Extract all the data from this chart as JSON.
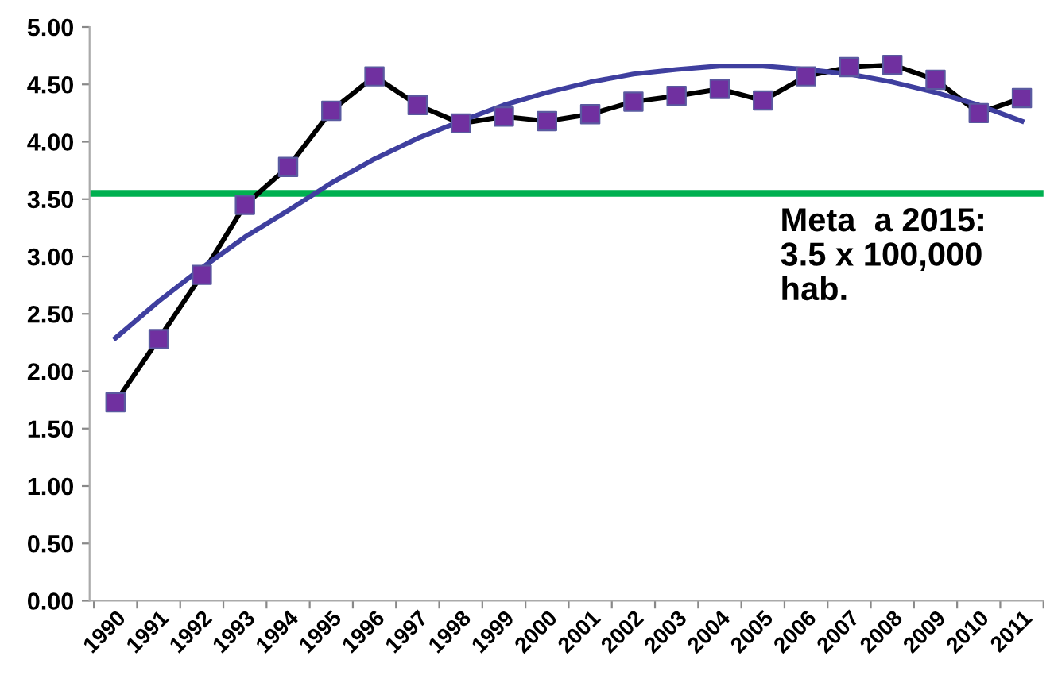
{
  "chart_data": {
    "type": "line",
    "categories": [
      "1990",
      "1991",
      "1992",
      "1993",
      "1994",
      "1995",
      "1996",
      "1997",
      "1998",
      "1999",
      "2000",
      "2001",
      "2002",
      "2003",
      "2004",
      "2005",
      "2006",
      "2007",
      "2008",
      "2009",
      "2010",
      "2011"
    ],
    "series": [
      {
        "color": "#000000",
        "colors": [
          "#7030a0",
          "#7030a0",
          "#7030a0",
          "#7030a0",
          "#7030a0",
          "#7030a0",
          "#7030a0",
          "#7030a0",
          "#7030a0",
          "#7030a0",
          "#7030a0",
          "#7030a0",
          "#7030a0",
          "#7030a0",
          "#7030a0",
          "#7030a0",
          "#7030a0",
          "#7030a0",
          "#7030a0",
          "#7030a0",
          "#7030a0",
          "#7030a0"
        ],
        "marker": "square",
        "values": [
          1.73,
          2.28,
          2.84,
          3.45,
          3.78,
          4.27,
          4.57,
          4.32,
          4.16,
          4.22,
          4.18,
          4.24,
          4.35,
          4.4,
          4.46,
          4.36,
          4.57,
          4.65,
          4.67,
          4.54,
          4.25,
          4.38
        ]
      },
      {
        "color": "#3f3f9f",
        "marker": "none",
        "values": [
          2.29,
          2.61,
          2.9,
          3.17,
          3.4,
          3.64,
          3.85,
          4.03,
          4.18,
          4.32,
          4.43,
          4.52,
          4.59,
          4.63,
          4.66,
          4.66,
          4.63,
          4.59,
          4.52,
          4.43,
          4.32,
          4.18
        ]
      }
    ],
    "ylim": [
      0,
      5
    ],
    "yticks": [
      {
        "value": 0,
        "label": "0.00"
      },
      {
        "value": 0.5,
        "label": "0.50"
      },
      {
        "value": 1,
        "label": "1.00"
      },
      {
        "value": 1.5,
        "label": "1.50"
      },
      {
        "value": 2,
        "label": "2.00"
      },
      {
        "value": 2.5,
        "label": "2.50"
      },
      {
        "value": 3,
        "label": "3.00"
      },
      {
        "value": 3.5,
        "label": "3.50"
      },
      {
        "value": 4,
        "label": "4.00"
      },
      {
        "value": 4.5,
        "label": "4.50"
      },
      {
        "value": 5,
        "label": "5.00"
      }
    ],
    "ref_lines": [
      {
        "axis": "y",
        "value": 3.55,
        "label": "Meta  a 2015:\n3.5 x 100,000\nhab.",
        "color": "#00b050",
        "line_style": "solid"
      }
    ],
    "grid": false,
    "legend": false,
    "line_style": "solid"
  }
}
